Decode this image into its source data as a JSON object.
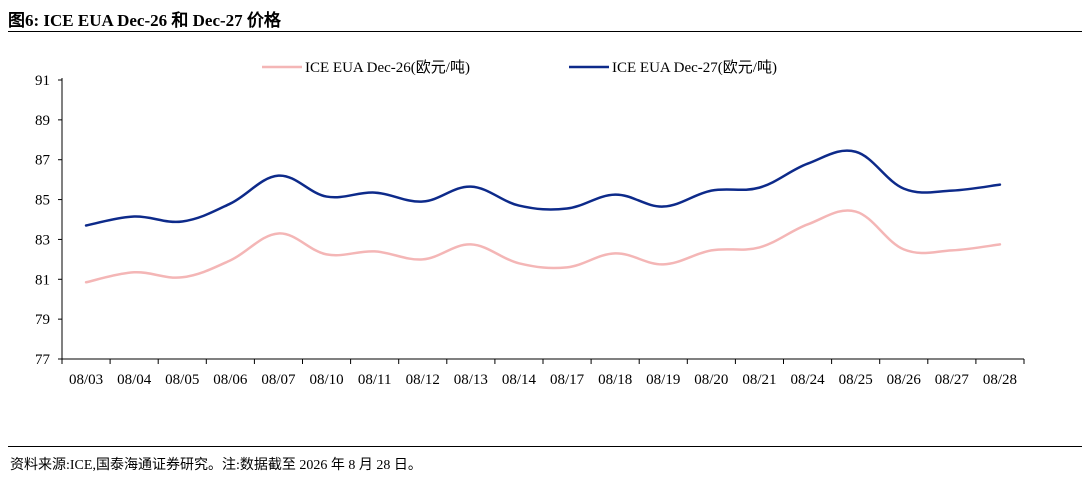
{
  "header": {
    "title": "图6:  ICE EUA Dec-26 和 Dec-27 价格"
  },
  "footer": {
    "source": "资料来源:ICE,国泰海通证券研究。注:数据截至 2026 年 8 月 28 日。"
  },
  "chart_data": {
    "type": "line",
    "title": "",
    "xlabel": "",
    "ylabel": "",
    "ylim": [
      77,
      91
    ],
    "yticks": [
      77,
      79,
      81,
      83,
      85,
      87,
      89,
      91
    ],
    "grid": false,
    "legend_position": "top",
    "categories": [
      "08/03",
      "08/04",
      "08/05",
      "08/06",
      "08/07",
      "08/10",
      "08/11",
      "08/12",
      "08/13",
      "08/14",
      "08/17",
      "08/18",
      "08/19",
      "08/20",
      "08/21",
      "08/24",
      "08/25",
      "08/26",
      "08/27",
      "08/28"
    ],
    "series": [
      {
        "name": "ICE EUA Dec-26(欧元/吨)",
        "color": "#f4b6b6",
        "values": [
          80.85,
          81.35,
          81.1,
          81.95,
          83.3,
          82.25,
          82.4,
          82.0,
          82.75,
          81.8,
          81.6,
          82.3,
          81.75,
          82.45,
          82.6,
          83.75,
          84.4,
          82.5,
          82.45,
          82.75
        ]
      },
      {
        "name": "ICE EUA Dec-27(欧元/吨)",
        "color": "#0d2a8a",
        "values": [
          83.7,
          84.15,
          83.9,
          84.8,
          86.2,
          85.15,
          85.35,
          84.9,
          85.65,
          84.7,
          84.55,
          85.25,
          84.65,
          85.45,
          85.6,
          86.8,
          87.4,
          85.55,
          85.45,
          85.75
        ]
      }
    ]
  }
}
